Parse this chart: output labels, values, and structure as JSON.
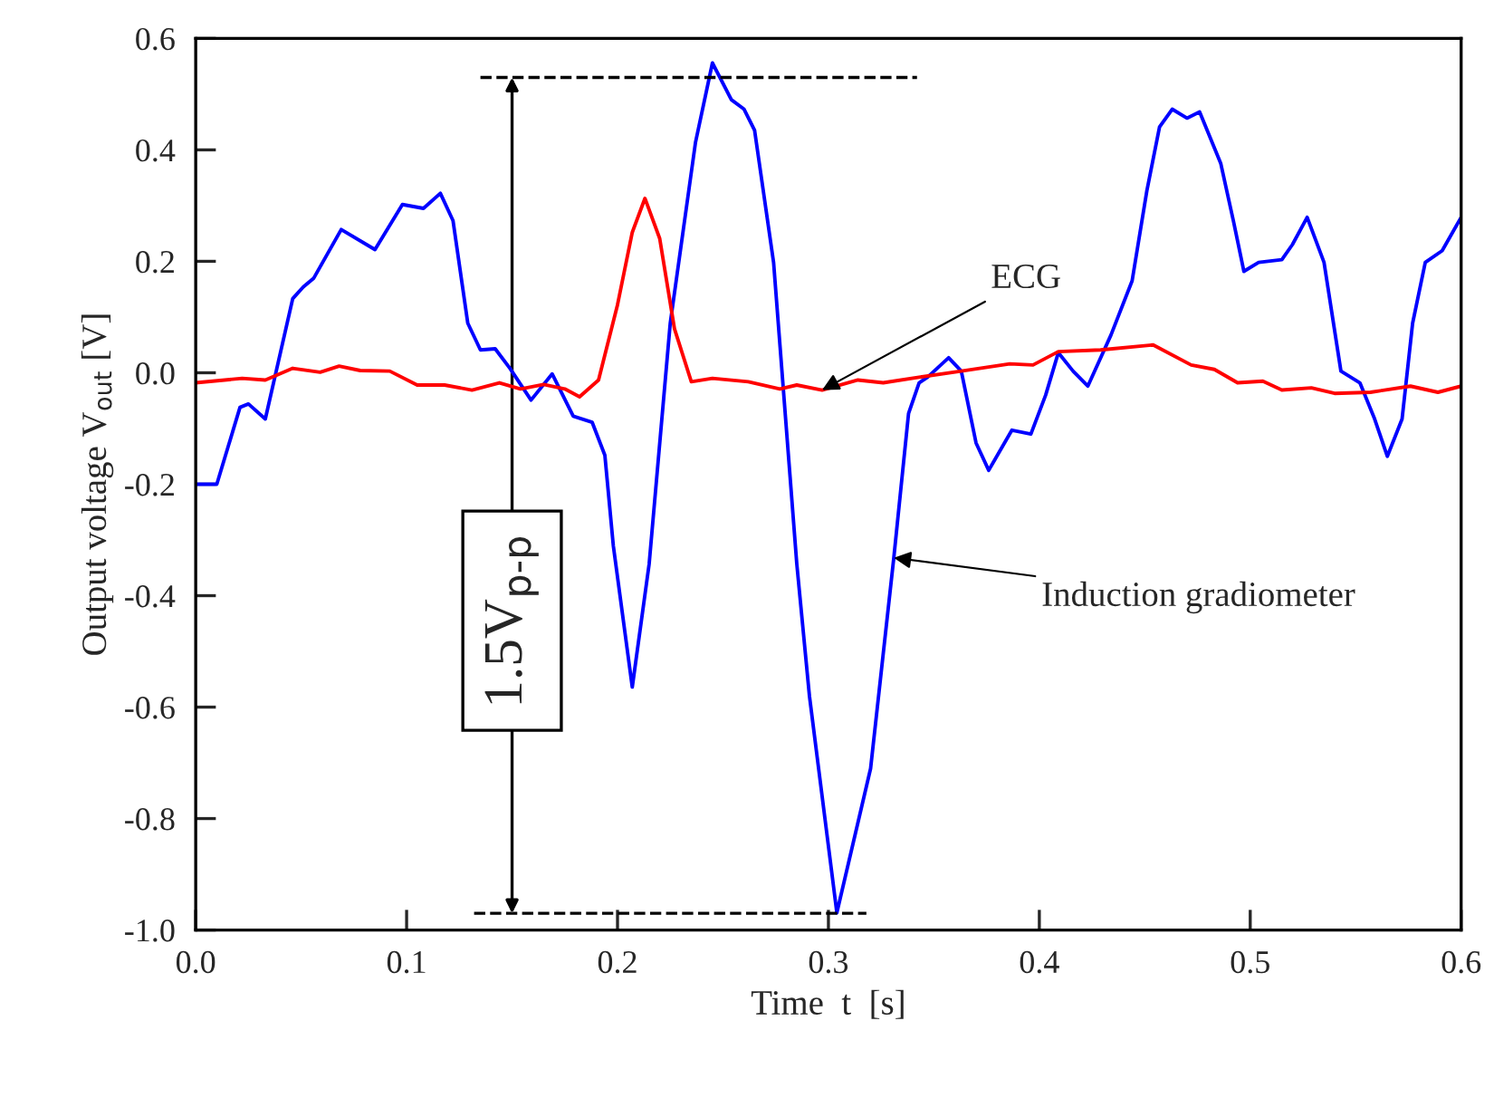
{
  "chart_data": {
    "type": "line",
    "xlabel": "Time  t  [s]",
    "ylabel": "Output voltage V$_{out}$ [V]",
    "xlim": [
      0,
      0.6
    ],
    "ylim": [
      -1.0,
      0.6
    ],
    "xticks": [
      {
        "value": 0,
        "label": "0.0"
      },
      0.1,
      0.2,
      0.3,
      0.4,
      0.5,
      0.6
    ],
    "yticks": [
      {
        "value": -1.0,
        "label": "-1.0"
      },
      -0.8,
      -0.6,
      -0.4,
      -0.2,
      {
        "value": 0,
        "label": "0.0"
      },
      0.2,
      0.4,
      0.6
    ],
    "grid": false,
    "legend": false,
    "marker": "none",
    "line_style": "solid",
    "series": [
      {
        "color": "#0000ff",
        "x": [
          0,
          0.01,
          0.021,
          0.025,
          0.033,
          0.046,
          0.051,
          0.056,
          0.069,
          0.085,
          0.098,
          0.108,
          0.116,
          0.122,
          0.129,
          0.135,
          0.142,
          0.149,
          0.159,
          0.169,
          0.179,
          0.188,
          0.194,
          0.198,
          0.207,
          0.215,
          0.225,
          0.237,
          0.245,
          0.254,
          0.26,
          0.265,
          0.274,
          0.285,
          0.291,
          0.304,
          0.32,
          0.331,
          0.338,
          0.343,
          0.347,
          0.357,
          0.363,
          0.37,
          0.376,
          0.387,
          0.396,
          0.403,
          0.409,
          0.416,
          0.423,
          0.434,
          0.444,
          0.451,
          0.457,
          0.463,
          0.47,
          0.476,
          0.486,
          0.492,
          0.497,
          0.504,
          0.515,
          0.52,
          0.527,
          0.535,
          0.543,
          0.552,
          0.559,
          0.565,
          0.572,
          0.577,
          0.583,
          0.591,
          0.6
        ],
        "values": [
          -0.2,
          -0.2,
          -0.062,
          -0.056,
          -0.083,
          0.133,
          0.154,
          0.17,
          0.257,
          0.221,
          0.302,
          0.295,
          0.322,
          0.273,
          0.089,
          0.041,
          0.043,
          0.008,
          -0.049,
          -0.002,
          -0.078,
          -0.089,
          -0.148,
          -0.31,
          -0.564,
          -0.343,
          0.089,
          0.414,
          0.556,
          0.49,
          0.473,
          0.435,
          0.198,
          -0.343,
          -0.58,
          -0.969,
          -0.71,
          -0.332,
          -0.073,
          -0.018,
          -0.008,
          0.027,
          0.003,
          -0.126,
          -0.175,
          -0.103,
          -0.11,
          -0.04,
          0.036,
          0.003,
          -0.024,
          0.068,
          0.165,
          0.327,
          0.441,
          0.473,
          0.457,
          0.468,
          0.376,
          0.273,
          0.182,
          0.198,
          0.203,
          0.23,
          0.279,
          0.198,
          0.003,
          -0.018,
          -0.083,
          -0.15,
          -0.083,
          0.089,
          0.198,
          0.219,
          0.279
        ]
      },
      {
        "color": "#ff0000",
        "x": [
          0,
          0.022,
          0.033,
          0.046,
          0.059,
          0.068,
          0.078,
          0.092,
          0.105,
          0.118,
          0.131,
          0.144,
          0.154,
          0.165,
          0.175,
          0.182,
          0.191,
          0.2,
          0.207,
          0.213,
          0.22,
          0.227,
          0.235,
          0.245,
          0.262,
          0.277,
          0.285,
          0.297,
          0.314,
          0.326,
          0.343,
          0.363,
          0.386,
          0.397,
          0.409,
          0.429,
          0.454,
          0.472,
          0.483,
          0.494,
          0.506,
          0.515,
          0.529,
          0.54,
          0.557,
          0.576,
          0.589,
          0.6
        ],
        "values": [
          -0.018,
          -0.01,
          -0.013,
          0.008,
          0.001,
          0.012,
          0.004,
          0.003,
          -0.022,
          -0.022,
          -0.031,
          -0.018,
          -0.029,
          -0.021,
          -0.029,
          -0.043,
          -0.013,
          0.122,
          0.252,
          0.313,
          0.241,
          0.079,
          -0.016,
          -0.01,
          -0.016,
          -0.029,
          -0.022,
          -0.031,
          -0.013,
          -0.018,
          -0.008,
          0.003,
          0.016,
          0.014,
          0.038,
          0.041,
          0.05,
          0.014,
          0.006,
          -0.018,
          -0.015,
          -0.031,
          -0.027,
          -0.037,
          -0.035,
          -0.024,
          -0.035,
          -0.024
        ]
      }
    ],
    "annotations": [
      {
        "text": "ECG",
        "x": 0.297,
        "y": -0.031
      },
      {
        "text": "Induction gradiometer",
        "x": 0.331,
        "y": -0.332
      },
      {
        "text": "1.5V$_{p-p}$",
        "x": 0.15,
        "y": 0.53
      }
    ],
    "ref_lines": [
      {
        "axis": "y",
        "value": 0.53,
        "color": "#000000",
        "line_style": "dashed"
      },
      {
        "axis": "y",
        "value": -0.97,
        "color": "#000000",
        "line_style": "dashed"
      }
    ]
  }
}
